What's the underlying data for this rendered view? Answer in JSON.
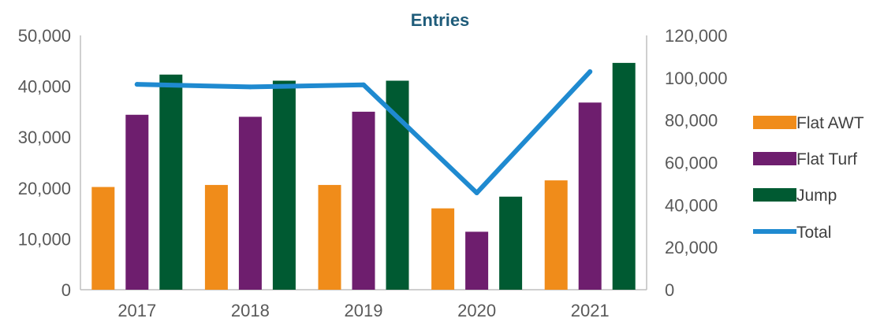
{
  "chart_data": {
    "type": "bar",
    "title": "Entries",
    "categories": [
      "2017",
      "2018",
      "2019",
      "2020",
      "2021"
    ],
    "series": [
      {
        "name": "Flat AWT",
        "type": "bar",
        "axis": "left",
        "color": "#f08c1a",
        "values": [
          20200,
          20600,
          20600,
          16000,
          21500
        ]
      },
      {
        "name": "Flat Turf",
        "type": "bar",
        "axis": "left",
        "color": "#6e1e6e",
        "values": [
          34400,
          34000,
          35000,
          11400,
          36800
        ]
      },
      {
        "name": "Jump",
        "type": "bar",
        "axis": "left",
        "color": "#005a32",
        "values": [
          42300,
          41100,
          41100,
          18300,
          44600
        ]
      },
      {
        "name": "Total",
        "type": "line",
        "axis": "right",
        "color": "#1f8ad0",
        "values": [
          96900,
          95700,
          96700,
          45700,
          102900
        ]
      }
    ],
    "y_left": {
      "min": 0,
      "max": 50000,
      "step": 10000,
      "tick_labels": [
        "0",
        "10,000",
        "20,000",
        "30,000",
        "40,000",
        "50,000"
      ]
    },
    "y_right": {
      "min": 0,
      "max": 120000,
      "step": 20000,
      "tick_labels": [
        "0",
        "20,000",
        "40,000",
        "60,000",
        "80,000",
        "100,000",
        "120,000"
      ]
    },
    "grid": false,
    "legend": {
      "position": "right",
      "entries": [
        "Flat AWT",
        "Flat Turf",
        "Jump",
        "Total"
      ]
    }
  }
}
